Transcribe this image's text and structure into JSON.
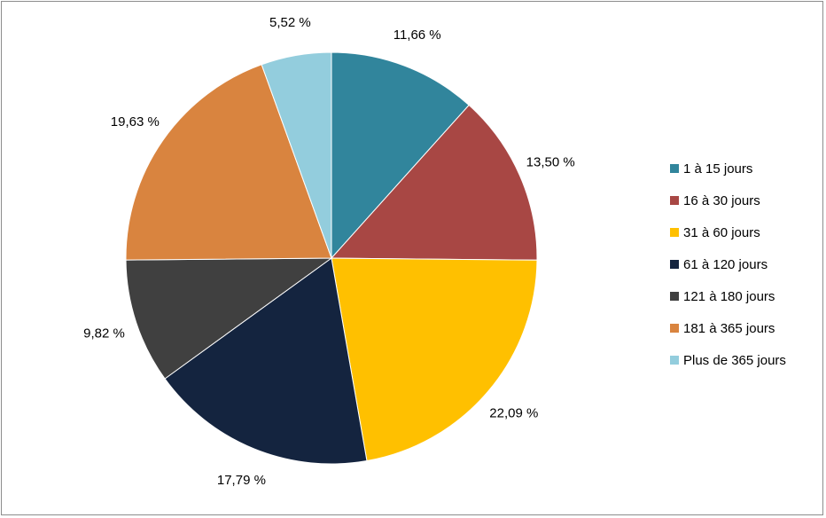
{
  "chart_data": {
    "type": "pie",
    "title": "",
    "categories": [
      "1 à 15 jours",
      "16 à 30 jours",
      "31 à 60 jours",
      "61 à 120 jours",
      "121 à 180 jours",
      "181 à 365 jours",
      "Plus de 365 jours"
    ],
    "values": [
      11.66,
      13.5,
      22.09,
      17.79,
      9.82,
      19.63,
      5.52
    ],
    "labels": [
      "11,66 %",
      "13,50 %",
      "22,09 %",
      "17,79 %",
      "9,82 %",
      "19,63 %",
      "5,52 %"
    ],
    "colors": [
      "#31859C",
      "#A84744",
      "#FFC000",
      "#14243F",
      "#404040",
      "#D9843F",
      "#93CDDD"
    ],
    "unit": "%",
    "start_angle_deg": 0,
    "direction": "clockwise",
    "legend_position": "right"
  }
}
